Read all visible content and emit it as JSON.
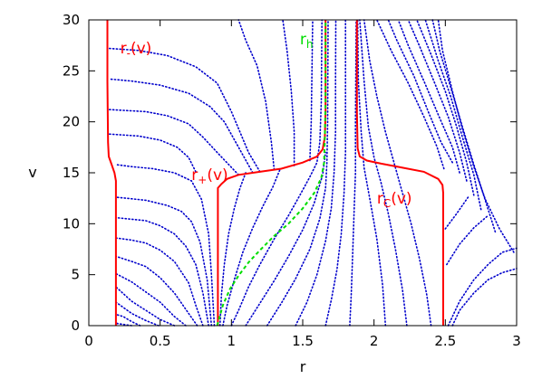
{
  "chart_data": {
    "type": "line",
    "title": "",
    "xlabel": "r",
    "ylabel": "v",
    "xlim": [
      0,
      3
    ],
    "ylim": [
      0,
      30
    ],
    "xticks": [
      0,
      0.5,
      1,
      1.5,
      2,
      2.5,
      3
    ],
    "xtick_labels": [
      "0",
      "0.5",
      "1",
      "1.5",
      "2",
      "2.5",
      "3"
    ],
    "yticks": [
      0,
      5,
      10,
      15,
      20,
      25,
      30
    ],
    "ytick_labels": [
      "0",
      "5",
      "10",
      "15",
      "20",
      "25",
      "30"
    ],
    "grid": false,
    "legend": "none",
    "colors": {
      "horizons": "#ff0000",
      "rh": "#00dd00",
      "geodesics": "#0000cc"
    },
    "annotations": [
      {
        "id": "r-minus",
        "main": "r",
        "sub": "-",
        "suffix": "(v)",
        "color": "#ff0000",
        "x": 0.22,
        "y": 26.7
      },
      {
        "id": "r-h",
        "main": "r",
        "sub": "h",
        "suffix": "",
        "color": "#00dd00",
        "x": 1.48,
        "y": 27.6
      },
      {
        "id": "r-plus",
        "main": "r",
        "sub": "+",
        "suffix": "(v)",
        "color": "#ff0000",
        "x": 0.72,
        "y": 14.3
      },
      {
        "id": "r-c",
        "main": "r",
        "sub": "C",
        "suffix": "(v)",
        "color": "#ff0000",
        "x": 2.02,
        "y": 12.0
      }
    ],
    "series": [
      {
        "id": "r_minus",
        "style": "solid",
        "points": [
          [
            0.13,
            30
          ],
          [
            0.13,
            24
          ],
          [
            0.135,
            18
          ],
          [
            0.14,
            16.6
          ],
          [
            0.16,
            15.8
          ],
          [
            0.18,
            15
          ],
          [
            0.19,
            14.2
          ],
          [
            0.19,
            10
          ],
          [
            0.19,
            0
          ]
        ]
      },
      {
        "id": "r_plus",
        "style": "solid",
        "points": [
          [
            0.905,
            0
          ],
          [
            0.905,
            13.5
          ],
          [
            0.93,
            13.9
          ],
          [
            0.97,
            14.4
          ],
          [
            1.05,
            14.8
          ],
          [
            1.2,
            15.1
          ],
          [
            1.35,
            15.4
          ],
          [
            1.5,
            16
          ],
          [
            1.6,
            16.6
          ],
          [
            1.64,
            17.3
          ],
          [
            1.655,
            18.5
          ],
          [
            1.66,
            21
          ],
          [
            1.66,
            30
          ]
        ]
      },
      {
        "id": "r_c",
        "style": "solid",
        "points": [
          [
            1.88,
            30
          ],
          [
            1.88,
            21
          ],
          [
            1.885,
            17.4
          ],
          [
            1.9,
            16.6
          ],
          [
            1.95,
            16.2
          ],
          [
            2.05,
            15.9
          ],
          [
            2.2,
            15.5
          ],
          [
            2.35,
            15.1
          ],
          [
            2.45,
            14.4
          ],
          [
            2.48,
            13.8
          ],
          [
            2.485,
            13
          ],
          [
            2.485,
            0
          ]
        ]
      },
      {
        "id": "r_h",
        "style": "dashed",
        "points": [
          [
            0.9,
            0
          ],
          [
            0.94,
            2
          ],
          [
            0.99,
            3.6
          ],
          [
            1.05,
            4.9
          ],
          [
            1.12,
            6.2
          ],
          [
            1.2,
            7.4
          ],
          [
            1.3,
            8.8
          ],
          [
            1.4,
            10
          ],
          [
            1.5,
            11.5
          ],
          [
            1.58,
            13
          ],
          [
            1.63,
            14.5
          ],
          [
            1.65,
            16
          ],
          [
            1.655,
            18.5
          ],
          [
            1.66,
            22
          ],
          [
            1.66,
            30
          ]
        ]
      }
    ],
    "geodesics": [
      [
        [
          0.3,
          0
        ],
        [
          0.2,
          0.2
        ],
        [
          0.19,
          0.3
        ]
      ],
      [
        [
          0.36,
          0
        ],
        [
          0.3,
          0.4
        ],
        [
          0.24,
          0.9
        ],
        [
          0.19,
          1.1
        ]
      ],
      [
        [
          0.49,
          0
        ],
        [
          0.4,
          0.5
        ],
        [
          0.3,
          1.2
        ],
        [
          0.24,
          1.8
        ],
        [
          0.19,
          2.3
        ]
      ],
      [
        [
          0.6,
          0
        ],
        [
          0.5,
          0.6
        ],
        [
          0.4,
          1.5
        ],
        [
          0.3,
          2.4
        ],
        [
          0.19,
          3.8
        ]
      ],
      [
        [
          0.68,
          0
        ],
        [
          0.6,
          0.9
        ],
        [
          0.5,
          2.3
        ],
        [
          0.4,
          3.3
        ],
        [
          0.3,
          4.3
        ],
        [
          0.19,
          5.1
        ]
      ],
      [
        [
          0.76,
          0
        ],
        [
          0.7,
          1.2
        ],
        [
          0.6,
          3.2
        ],
        [
          0.5,
          4.7
        ],
        [
          0.4,
          5.8
        ],
        [
          0.3,
          6.3
        ],
        [
          0.19,
          6.8
        ]
      ],
      [
        [
          0.8,
          0
        ],
        [
          0.75,
          2
        ],
        [
          0.7,
          4.2
        ],
        [
          0.6,
          6.3
        ],
        [
          0.5,
          7.4
        ],
        [
          0.4,
          8.1
        ],
        [
          0.3,
          8.4
        ],
        [
          0.19,
          8.6
        ]
      ],
      [
        [
          0.84,
          0
        ],
        [
          0.8,
          3.2
        ],
        [
          0.75,
          6
        ],
        [
          0.68,
          7.8
        ],
        [
          0.6,
          9
        ],
        [
          0.5,
          9.8
        ],
        [
          0.4,
          10.3
        ],
        [
          0.19,
          10.6
        ]
      ],
      [
        [
          0.86,
          0
        ],
        [
          0.83,
          4.5
        ],
        [
          0.78,
          8.2
        ],
        [
          0.72,
          10.2
        ],
        [
          0.65,
          11.2
        ],
        [
          0.55,
          11.8
        ],
        [
          0.4,
          12.3
        ],
        [
          0.19,
          12.6
        ]
      ],
      [
        [
          0.88,
          0
        ],
        [
          0.86,
          5
        ],
        [
          0.84,
          9
        ],
        [
          0.79,
          12.4
        ],
        [
          0.72,
          14.2
        ],
        [
          0.6,
          15
        ],
        [
          0.45,
          15.4
        ],
        [
          0.3,
          15.6
        ],
        [
          0.19,
          15.8
        ]
      ],
      [
        [
          0.75,
          15.1
        ],
        [
          0.7,
          16.5
        ],
        [
          0.62,
          17.5
        ],
        [
          0.5,
          18.2
        ],
        [
          0.35,
          18.6
        ],
        [
          0.14,
          18.8
        ]
      ],
      [
        [
          1.05,
          14.8
        ],
        [
          0.9,
          17
        ],
        [
          0.8,
          18.5
        ],
        [
          0.7,
          19.8
        ],
        [
          0.55,
          20.6
        ],
        [
          0.4,
          21
        ],
        [
          0.14,
          21.2
        ]
      ],
      [
        [
          1.15,
          15
        ],
        [
          1.05,
          17.5
        ],
        [
          0.95,
          20
        ],
        [
          0.85,
          21.5
        ],
        [
          0.7,
          22.8
        ],
        [
          0.5,
          23.6
        ],
        [
          0.3,
          24
        ],
        [
          0.14,
          24.2
        ]
      ],
      [
        [
          1.2,
          15.1
        ],
        [
          1.12,
          17
        ],
        [
          1.0,
          21
        ],
        [
          0.9,
          23.8
        ],
        [
          0.75,
          25.4
        ],
        [
          0.55,
          26.5
        ],
        [
          0.35,
          27
        ],
        [
          0.14,
          27.2
        ]
      ],
      [
        [
          1.3,
          15.3
        ],
        [
          1.28,
          18
        ],
        [
          1.24,
          22
        ],
        [
          1.18,
          25.5
        ],
        [
          1.1,
          28
        ],
        [
          1.05,
          30
        ]
      ],
      [
        [
          1.44,
          15.7
        ],
        [
          1.44,
          19
        ],
        [
          1.42,
          23
        ],
        [
          1.39,
          27
        ],
        [
          1.36,
          30
        ]
      ],
      [
        [
          1.55,
          16.2
        ],
        [
          1.56,
          20
        ],
        [
          1.565,
          25
        ],
        [
          1.57,
          30
        ]
      ],
      [
        [
          0.92,
          0
        ],
        [
          0.93,
          3
        ],
        [
          0.95,
          6
        ],
        [
          0.98,
          9
        ],
        [
          1.02,
          11.5
        ],
        [
          1.06,
          13.5
        ],
        [
          1.1,
          15
        ]
      ],
      [
        [
          0.94,
          0
        ],
        [
          0.97,
          2
        ],
        [
          1.02,
          4.5
        ],
        [
          1.08,
          7.2
        ],
        [
          1.15,
          9.6
        ],
        [
          1.22,
          11.7
        ],
        [
          1.29,
          13.6
        ],
        [
          1.34,
          15.3
        ]
      ],
      [
        [
          1.0,
          0
        ],
        [
          1.05,
          1.5
        ],
        [
          1.12,
          3.8
        ],
        [
          1.2,
          6
        ],
        [
          1.3,
          8.5
        ],
        [
          1.4,
          10.8
        ],
        [
          1.48,
          12.8
        ],
        [
          1.55,
          14.6
        ],
        [
          1.6,
          16
        ],
        [
          1.62,
          18
        ],
        [
          1.63,
          22
        ],
        [
          1.635,
          30
        ]
      ],
      [
        [
          1.1,
          0
        ],
        [
          1.2,
          2.2
        ],
        [
          1.3,
          4.4
        ],
        [
          1.4,
          6.8
        ],
        [
          1.5,
          9.4
        ],
        [
          1.58,
          12
        ],
        [
          1.64,
          14.8
        ],
        [
          1.66,
          17
        ]
      ],
      [
        [
          1.25,
          0
        ],
        [
          1.35,
          2.2
        ],
        [
          1.45,
          4.6
        ],
        [
          1.55,
          7.5
        ],
        [
          1.62,
          10.5
        ],
        [
          1.66,
          13.5
        ],
        [
          1.67,
          16
        ],
        [
          1.675,
          20
        ],
        [
          1.678,
          30
        ]
      ],
      [
        [
          1.45,
          0
        ],
        [
          1.53,
          2.3
        ],
        [
          1.6,
          5
        ],
        [
          1.66,
          8.3
        ],
        [
          1.7,
          11.5
        ],
        [
          1.72,
          15
        ],
        [
          1.73,
          19
        ],
        [
          1.73,
          24
        ],
        [
          1.732,
          30
        ]
      ],
      [
        [
          1.66,
          0
        ],
        [
          1.7,
          2.5
        ],
        [
          1.74,
          5.5
        ],
        [
          1.77,
          9
        ],
        [
          1.79,
          13
        ],
        [
          1.8,
          17
        ],
        [
          1.8,
          22
        ],
        [
          1.8,
          30
        ]
      ],
      [
        [
          1.83,
          0
        ],
        [
          1.84,
          3
        ],
        [
          1.85,
          7
        ],
        [
          1.86,
          11
        ],
        [
          1.87,
          15
        ],
        [
          1.87,
          20
        ],
        [
          1.875,
          30
        ]
      ],
      [
        [
          2.08,
          0
        ],
        [
          2.06,
          4
        ],
        [
          2.02,
          8.5
        ],
        [
          1.97,
          12.5
        ],
        [
          1.93,
          15.5
        ],
        [
          1.91,
          19
        ],
        [
          1.89,
          24
        ],
        [
          1.885,
          30
        ]
      ],
      [
        [
          2.23,
          0
        ],
        [
          2.2,
          3.5
        ],
        [
          2.15,
          7.5
        ],
        [
          2.1,
          11
        ],
        [
          2.05,
          14
        ],
        [
          2.0,
          16.5
        ],
        [
          1.96,
          19.5
        ],
        [
          1.93,
          24
        ],
        [
          1.9,
          30
        ]
      ],
      [
        [
          2.4,
          0
        ],
        [
          2.37,
          3
        ],
        [
          2.32,
          6.5
        ],
        [
          2.26,
          10
        ],
        [
          2.2,
          13
        ],
        [
          2.14,
          16
        ],
        [
          2.08,
          19
        ],
        [
          2.02,
          22.5
        ],
        [
          1.97,
          26
        ],
        [
          1.93,
          30
        ]
      ],
      [
        [
          2.49,
          15.4
        ],
        [
          2.44,
          17.6
        ],
        [
          2.35,
          20.5
        ],
        [
          2.24,
          23.8
        ],
        [
          2.12,
          27
        ],
        [
          2.02,
          30
        ]
      ],
      [
        [
          2.55,
          16
        ],
        [
          2.47,
          18
        ],
        [
          2.38,
          21
        ],
        [
          2.28,
          24.5
        ],
        [
          2.16,
          28
        ],
        [
          2.1,
          30
        ]
      ],
      [
        [
          2.6,
          15
        ],
        [
          2.55,
          17.5
        ],
        [
          2.45,
          20.7
        ],
        [
          2.35,
          24
        ],
        [
          2.24,
          27.5
        ],
        [
          2.17,
          30
        ]
      ],
      [
        [
          2.65,
          14.2
        ],
        [
          2.6,
          17
        ],
        [
          2.52,
          20.5
        ],
        [
          2.42,
          24
        ],
        [
          2.32,
          27.4
        ],
        [
          2.24,
          30
        ]
      ],
      [
        [
          2.7,
          12.8
        ],
        [
          2.65,
          16
        ],
        [
          2.58,
          19.5
        ],
        [
          2.5,
          23
        ],
        [
          2.4,
          26.6
        ],
        [
          2.3,
          30
        ]
      ],
      [
        [
          2.75,
          11.4
        ],
        [
          2.7,
          14.8
        ],
        [
          2.62,
          18.5
        ],
        [
          2.54,
          22.4
        ],
        [
          2.45,
          26
        ],
        [
          2.36,
          30
        ]
      ],
      [
        [
          2.85,
          9.2
        ],
        [
          2.78,
          12.3
        ],
        [
          2.7,
          15.8
        ],
        [
          2.62,
          19.5
        ],
        [
          2.54,
          23.3
        ],
        [
          2.46,
          27
        ],
        [
          2.41,
          30
        ]
      ],
      [
        [
          2.98,
          7.2
        ],
        [
          2.88,
          9.5
        ],
        [
          2.78,
          12.4
        ],
        [
          2.7,
          15.6
        ],
        [
          2.62,
          19.3
        ],
        [
          2.55,
          23
        ],
        [
          2.48,
          27
        ],
        [
          2.45,
          30
        ]
      ],
      [
        [
          2.55,
          0
        ],
        [
          2.6,
          1.5
        ],
        [
          2.7,
          3.2
        ],
        [
          2.8,
          4.5
        ],
        [
          2.9,
          5.2
        ],
        [
          3.0,
          5.6
        ]
      ],
      [
        [
          2.52,
          0
        ],
        [
          2.6,
          2.4
        ],
        [
          2.7,
          4.5
        ],
        [
          2.8,
          6
        ],
        [
          2.9,
          7.2
        ],
        [
          3.0,
          7.6
        ]
      ],
      [
        [
          2.51,
          6
        ],
        [
          2.6,
          8
        ],
        [
          2.7,
          9.6
        ],
        [
          2.8,
          10.8
        ]
      ],
      [
        [
          2.5,
          9.5
        ],
        [
          2.58,
          11
        ],
        [
          2.66,
          12.6
        ]
      ]
    ]
  }
}
